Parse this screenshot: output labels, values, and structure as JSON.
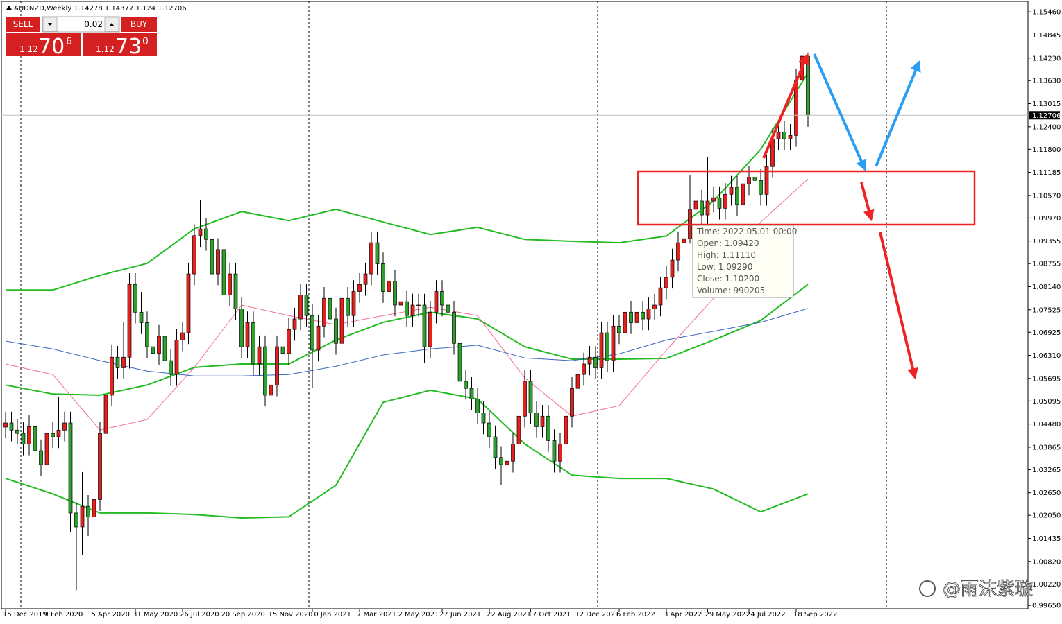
{
  "chart_data": {
    "type": "candlestick",
    "title": "AUDNZD,Weekly",
    "up_color": "#e8201c",
    "down_color": "#2ea02e",
    "ylim": [
      0.9956,
      1.1574
    ],
    "yticks": [
      {
        "value": 1.1546,
        "label": "1.15460"
      },
      1.14845,
      {
        "value": 1.1423,
        "label": "1.14230"
      },
      {
        "value": 1.1363,
        "label": "1.13630"
      },
      1.13015,
      {
        "value": 1.124,
        "label": "1.12400"
      },
      {
        "value": 1.118,
        "label": "1.11800"
      },
      1.11185,
      {
        "value": 1.1057,
        "label": "1.10570"
      },
      {
        "value": 1.0997,
        "label": "1.09970"
      },
      1.09355,
      1.08755,
      {
        "value": 1.0814,
        "label": "1.08140"
      },
      1.07525,
      1.06925,
      {
        "value": 1.0631,
        "label": "1.06310"
      },
      1.05695,
      1.05095,
      {
        "value": 1.0448,
        "label": "1.04480"
      },
      1.03865,
      1.03265,
      {
        "value": 1.0265,
        "label": "1.02650"
      },
      {
        "value": 1.0205,
        "label": "1.02050"
      },
      1.01435,
      {
        "value": 1.0082,
        "label": "1.00820"
      },
      {
        "value": 1.0022,
        "label": "1.00220"
      },
      {
        "value": 0.9965,
        "label": "0.99650"
      }
    ],
    "categories": [
      "15 Dec 2019",
      null,
      null,
      null,
      null,
      null,
      null,
      "9 Feb 2020",
      null,
      null,
      null,
      null,
      null,
      null,
      null,
      "5 Apr 2020",
      null,
      null,
      null,
      null,
      null,
      null,
      "31 May 2020",
      null,
      null,
      null,
      null,
      null,
      null,
      null,
      "26 Jul 2020",
      null,
      null,
      null,
      null,
      null,
      null,
      "20 Sep 2020",
      null,
      null,
      null,
      null,
      null,
      null,
      null,
      "15 Nov 2020",
      null,
      null,
      null,
      null,
      null,
      null,
      "10 Jan 2021",
      null,
      null,
      null,
      null,
      null,
      null,
      null,
      "7 Mar 2021",
      null,
      null,
      null,
      null,
      null,
      null,
      "2 May 2021",
      null,
      null,
      null,
      null,
      null,
      null,
      "27 Jun 2021",
      null,
      null,
      null,
      null,
      null,
      null,
      null,
      "22 Aug 2021",
      null,
      null,
      null,
      null,
      null,
      null,
      "17 Oct 2021",
      null,
      null,
      null,
      null,
      null,
      null,
      null,
      "12 Dec 2021",
      null,
      null,
      null,
      null,
      null,
      null,
      "6 Feb 2022",
      null,
      null,
      null,
      null,
      null,
      null,
      null,
      "3 Apr 2022",
      null,
      null,
      null,
      null,
      null,
      null,
      "29 May 2022",
      null,
      null,
      null,
      null,
      null,
      null,
      "24 Jul 2022",
      null,
      null,
      null,
      null,
      null,
      null,
      null,
      "18 Sep 2022",
      null,
      null
    ],
    "open": [
      1.044,
      1.0451,
      1.0432,
      1.0423,
      1.0395,
      1.0441,
      1.0377,
      1.034,
      1.0423,
      1.0414,
      1.0432,
      1.0451,
      1.0211,
      1.0174,
      1.0229,
      1.0201,
      1.0247,
      1.0423,
      1.0525,
      1.0626,
      1.0598,
      1.0626,
      1.082,
      1.0746,
      1.0718,
      1.0654,
      1.0636,
      1.0682,
      1.0617,
      1.058,
      1.0672,
      1.0691,
      1.0848,
      1.095,
      1.0968,
      1.094,
      1.0848,
      1.0913,
      1.0792,
      1.0848,
      1.0755,
      1.0654,
      1.0718,
      1.0608,
      1.0654,
      1.0525,
      1.0552,
      1.0654,
      1.0636,
      1.07,
      1.0728,
      1.0792,
      1.0737,
      1.0645,
      1.0709,
      1.0783,
      1.0728,
      1.0663,
      1.0783,
      1.0737,
      1.0801,
      1.082,
      1.0848,
      1.0931,
      1.0875,
      1.0801,
      1.0829,
      1.0765,
      1.0774,
      1.0737,
      1.0765,
      1.0765,
      1.0654,
      1.0746,
      1.0801,
      1.0765,
      1.0746,
      1.0663,
      1.0562,
      1.0543,
      1.0515,
      1.0478,
      1.0451,
      1.0414,
      1.0359,
      1.034,
      1.0349,
      1.0395,
      1.0469,
      1.0562,
      1.0478,
      1.0441,
      1.0469,
      1.0404,
      1.0349,
      1.0395,
      1.0469,
      1.0543,
      1.058,
      1.0608,
      1.0626,
      1.0598,
      1.0691,
      1.0617,
      1.0709,
      1.0691,
      1.0746,
      1.0718,
      1.0746,
      1.0728,
      1.0755,
      1.0765,
      1.0811,
      1.0839,
      1.0885,
      1.0931,
      1.0942,
      1.102,
      1.1042,
      1.1005,
      1.1042,
      1.1051,
      1.1023,
      1.106,
      1.1079,
      1.1033,
      1.1088,
      1.1106,
      1.1097,
      1.106,
      1.1134,
      1.1208,
      1.1226,
      1.1208,
      1.1217,
      1.1365,
      1.14278
    ],
    "high": [
      1.0481,
      1.0481,
      1.0462,
      1.0453,
      1.0471,
      1.0471,
      1.0407,
      1.0453,
      1.0453,
      1.052,
      1.0481,
      1.0481,
      1.024,
      1.032,
      1.0259,
      1.03,
      1.0453,
      1.056,
      1.066,
      1.0656,
      1.072,
      1.085,
      1.085,
      1.08,
      1.0748,
      1.0684,
      1.0712,
      1.0712,
      1.0647,
      1.0702,
      1.0721,
      1.0878,
      1.098,
      1.1045,
      1.0998,
      1.097,
      1.0943,
      1.0943,
      1.0878,
      1.0878,
      1.0785,
      1.0748,
      1.0748,
      1.0684,
      1.0684,
      1.0582,
      1.0684,
      1.0684,
      1.073,
      1.0758,
      1.0822,
      1.0822,
      1.0767,
      1.0739,
      1.0813,
      1.0813,
      1.0758,
      1.0813,
      1.0813,
      1.0831,
      1.085,
      1.0878,
      1.096,
      1.0961,
      1.0905,
      1.0859,
      1.0859,
      1.0804,
      1.0804,
      1.0795,
      1.0795,
      1.0795,
      1.0776,
      1.0831,
      1.0831,
      1.0795,
      1.0776,
      1.0693,
      1.0592,
      1.0573,
      1.0545,
      1.0508,
      1.0481,
      1.0444,
      1.0389,
      1.0379,
      1.0425,
      1.0499,
      1.0592,
      1.0592,
      1.0508,
      1.0499,
      1.0499,
      1.0434,
      1.0425,
      1.0499,
      1.0573,
      1.061,
      1.0638,
      1.0656,
      1.0656,
      1.0721,
      1.0721,
      1.0739,
      1.0739,
      1.0776,
      1.0776,
      1.0776,
      1.0776,
      1.0785,
      1.0795,
      1.0841,
      1.0869,
      1.0915,
      1.0961,
      1.0972,
      1.1111,
      1.1072,
      1.1072,
      1.116,
      1.1081,
      1.1081,
      1.109,
      1.1109,
      1.1109,
      1.1118,
      1.1136,
      1.1136,
      1.1127,
      1.1164,
      1.1238,
      1.1256,
      1.1256,
      1.1247,
      1.1395,
      1.1491,
      1.14377
    ],
    "low": [
      1.041,
      1.0402,
      1.0393,
      1.0365,
      1.0365,
      1.0347,
      1.031,
      1.031,
      1.0384,
      1.0384,
      1.0402,
      1.016,
      1.0005,
      1.01,
      1.015,
      1.0171,
      1.0217,
      1.0393,
      1.0495,
      1.0568,
      1.0568,
      1.0596,
      1.0716,
      1.0688,
      1.0624,
      1.0606,
      1.0606,
      1.0587,
      1.055,
      1.055,
      1.0642,
      1.0661,
      1.0818,
      1.092,
      1.091,
      1.0818,
      1.0818,
      1.0762,
      1.0762,
      1.0725,
      1.0624,
      1.0624,
      1.0578,
      1.0578,
      1.0495,
      1.048,
      1.0522,
      1.0606,
      1.0606,
      1.067,
      1.0698,
      1.0707,
      1.0545,
      1.0615,
      1.0679,
      1.0698,
      1.0633,
      1.0633,
      1.0707,
      1.0707,
      1.0771,
      1.079,
      1.0818,
      1.0845,
      1.0771,
      1.0771,
      1.0735,
      1.0735,
      1.0707,
      1.0707,
      1.0735,
      1.061,
      1.0624,
      1.0716,
      1.0735,
      1.0716,
      1.0633,
      1.0532,
      1.0513,
      1.0485,
      1.0448,
      1.0421,
      1.0384,
      1.0329,
      1.0285,
      1.0285,
      1.0319,
      1.0365,
      1.0439,
      1.0448,
      1.0411,
      1.0411,
      1.0374,
      1.0319,
      1.0319,
      1.0365,
      1.0439,
      1.0513,
      1.055,
      1.0578,
      1.0568,
      1.0568,
      1.0587,
      1.0587,
      1.0661,
      1.0661,
      1.0688,
      1.0688,
      1.0698,
      1.0698,
      1.0725,
      1.0735,
      1.0781,
      1.0809,
      1.0855,
      1.0901,
      1.0929,
      1.099,
      1.0975,
      1.0975,
      1.1012,
      1.0993,
      1.0993,
      1.103,
      1.1003,
      1.1003,
      1.1058,
      1.1067,
      1.103,
      1.103,
      1.1104,
      1.1178,
      1.1178,
      1.1178,
      1.1187,
      1.1335,
      1.124
    ],
    "close": [
      1.0451,
      1.0432,
      1.0423,
      1.0395,
      1.0441,
      1.0377,
      1.034,
      1.0423,
      1.0414,
      1.0432,
      1.0451,
      1.0211,
      1.0174,
      1.0229,
      1.0201,
      1.0247,
      1.0423,
      1.0525,
      1.0626,
      1.0598,
      1.0626,
      1.082,
      1.0746,
      1.0718,
      1.0654,
      1.0636,
      1.0682,
      1.0617,
      1.058,
      1.0672,
      1.0691,
      1.0848,
      1.095,
      1.0968,
      1.094,
      1.0848,
      1.0913,
      1.0792,
      1.0848,
      1.0755,
      1.0654,
      1.0718,
      1.0608,
      1.0654,
      1.0525,
      1.0552,
      1.0654,
      1.0636,
      1.07,
      1.0728,
      1.0792,
      1.0737,
      1.0645,
      1.0709,
      1.0783,
      1.0728,
      1.0663,
      1.0783,
      1.0737,
      1.0801,
      1.082,
      1.0848,
      1.0931,
      1.0875,
      1.0801,
      1.0829,
      1.0765,
      1.0774,
      1.0737,
      1.0765,
      1.0765,
      1.0654,
      1.0746,
      1.0801,
      1.0765,
      1.0746,
      1.0663,
      1.0562,
      1.0543,
      1.0515,
      1.0478,
      1.0451,
      1.0414,
      1.0359,
      1.034,
      1.0349,
      1.0395,
      1.0469,
      1.0562,
      1.0478,
      1.0441,
      1.0469,
      1.0404,
      1.0349,
      1.0395,
      1.0469,
      1.0543,
      1.058,
      1.0608,
      1.0626,
      1.0598,
      1.0691,
      1.0617,
      1.0709,
      1.0691,
      1.0746,
      1.0718,
      1.0746,
      1.0728,
      1.0755,
      1.0765,
      1.0811,
      1.0839,
      1.0885,
      1.0931,
      1.0942,
      1.102,
      1.1042,
      1.1005,
      1.1042,
      1.1051,
      1.1023,
      1.106,
      1.1079,
      1.1033,
      1.1088,
      1.1106,
      1.1097,
      1.106,
      1.1134,
      1.1208,
      1.1226,
      1.1208,
      1.1217,
      1.1365,
      1.1428,
      1.12706
    ],
    "indicators": {
      "x": [
        0,
        8,
        16,
        24,
        32,
        40,
        48,
        56,
        64,
        72,
        80,
        88,
        96,
        104,
        112,
        120,
        128,
        136
      ],
      "series": [
        {
          "color": "#22bb22",
          "width": 2,
          "values": [
            1.0805,
            1.0805,
            1.0844,
            1.0876,
            1.0968,
            1.1014,
            1.099,
            1.102,
            1.0986,
            1.0953,
            1.0972,
            1.094,
            1.0935,
            1.0931,
            1.0949,
            1.1042,
            1.118,
            1.1384
          ]
        },
        {
          "color": "#22bb22",
          "width": 2,
          "values": [
            1.0552,
            1.0528,
            1.0525,
            1.0552,
            1.0599,
            1.0608,
            1.0608,
            1.0672,
            1.0719,
            1.0746,
            1.0728,
            1.0654,
            1.0621,
            1.0621,
            1.0623,
            1.0672,
            1.0724,
            1.082
          ]
        },
        {
          "color": "#22bb22",
          "width": 2,
          "values": [
            1.0303,
            1.0262,
            1.0211,
            1.0211,
            1.0207,
            1.0198,
            1.0201,
            1.0285,
            1.0506,
            1.0538,
            1.0515,
            1.0395,
            1.0312,
            1.0303,
            1.0303,
            1.0275,
            1.0214,
            1.0262
          ]
        },
        {
          "color": "#f07090",
          "width": 1,
          "values": [
            1.0608,
            1.058,
            1.0432,
            1.046,
            1.0599,
            1.0765,
            1.0737,
            1.0713,
            1.0737,
            1.0759,
            1.0737,
            1.0571,
            1.0469,
            1.0497,
            1.0645,
            1.0783,
            1.0986,
            1.1101
          ]
        },
        {
          "color": "#3a66c0",
          "width": 1,
          "values": [
            1.0669,
            1.0648,
            1.0617,
            1.0589,
            1.0576,
            1.0576,
            1.058,
            1.0602,
            1.0632,
            1.0648,
            1.0658,
            1.0624,
            1.0617,
            1.0635,
            1.0672,
            1.0695,
            1.0719,
            1.0756
          ]
        }
      ]
    }
  },
  "trade_panel": {
    "sell": "SELL",
    "lot": "0.02",
    "buy": "BUY",
    "bid": {
      "prefix": "1.12",
      "big": "70",
      "small": "6"
    },
    "ask": {
      "prefix": "1.12",
      "big": "73",
      "small": "0"
    }
  },
  "tooltip": [
    "Time: 2022.05.01 00:00",
    "Open: 1.09420",
    "High: 1.11110",
    "Low:  1.09290",
    "Close: 1.10200",
    "Volume: 990205"
  ],
  "watermark": "@雨沫紫璇"
}
